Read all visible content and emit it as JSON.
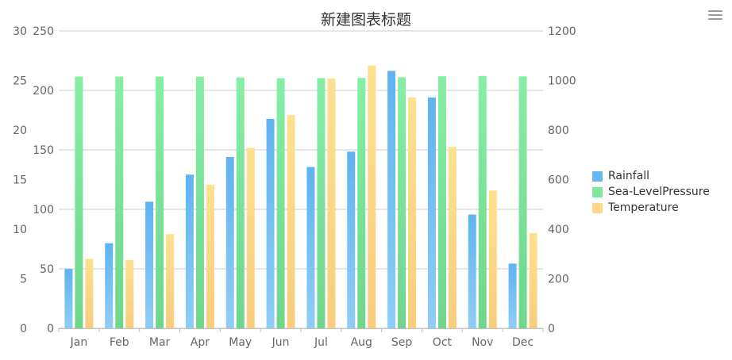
{
  "title": "新建图表标题",
  "menu_icon": "hamburger-menu-icon",
  "chart_data": {
    "type": "bar",
    "title": "新建图表标题",
    "categories": [
      "Jan",
      "Feb",
      "Mar",
      "Apr",
      "May",
      "Jun",
      "Jul",
      "Aug",
      "Sep",
      "Oct",
      "Nov",
      "Dec"
    ],
    "series": [
      {
        "name": "Rainfall",
        "color": "#66b8f2",
        "axis": "left-inner",
        "values": [
          49.9,
          71.5,
          106.4,
          129.2,
          144.0,
          176.0,
          135.6,
          148.5,
          216.4,
          194.1,
          95.6,
          54.4
        ]
      },
      {
        "name": "Sea-LevelPressure",
        "color": "#7ee79c",
        "axis": "right",
        "values": [
          1016,
          1016,
          1015.9,
          1015.5,
          1012.3,
          1009.5,
          1009.6,
          1010.2,
          1013.1,
          1016.9,
          1018.2,
          1016.7
        ]
      },
      {
        "name": "Temperature",
        "color": "#fdd889",
        "axis": "left-outer",
        "values": [
          7.0,
          6.9,
          9.5,
          14.5,
          18.2,
          21.5,
          25.2,
          26.5,
          23.3,
          18.3,
          13.9,
          9.6
        ]
      }
    ],
    "axes": {
      "left_outer": {
        "min": 0,
        "max": 30,
        "ticks": [
          "0",
          "5",
          "10",
          "15",
          "20",
          "25",
          "30"
        ]
      },
      "left_inner": {
        "min": 0,
        "max": 250,
        "ticks": [
          "0",
          "50",
          "100",
          "150",
          "200",
          "250"
        ]
      },
      "right": {
        "min": 0,
        "max": 1200,
        "ticks": [
          "0",
          "200",
          "400",
          "600",
          "800",
          "1000",
          "1200"
        ]
      }
    },
    "grid": true,
    "legend_position": "right"
  }
}
